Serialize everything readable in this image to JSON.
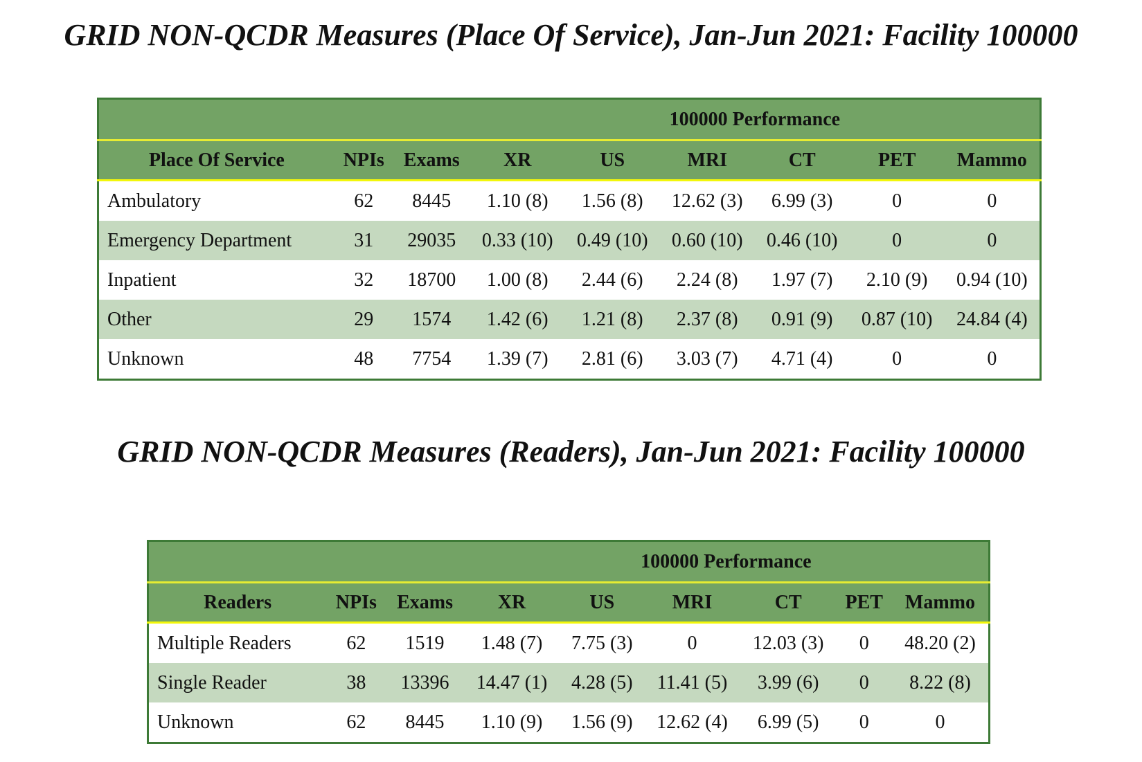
{
  "section1": {
    "title": "GRID NON-QCDR Measures (Place Of Service), Jan-Jun 2021: Facility 100000",
    "performance_header": "100000 Performance",
    "columns": [
      "Place Of Service",
      "NPIs",
      "Exams",
      "XR",
      "US",
      "MRI",
      "CT",
      "PET",
      "Mammo"
    ],
    "rows": [
      [
        "Ambulatory",
        "62",
        "8445",
        "1.10 (8)",
        "1.56 (8)",
        "12.62 (3)",
        "6.99 (3)",
        "0",
        "0"
      ],
      [
        "Emergency Department",
        "31",
        "29035",
        "0.33 (10)",
        "0.49 (10)",
        "0.60 (10)",
        "0.46 (10)",
        "0",
        "0"
      ],
      [
        "Inpatient",
        "32",
        "18700",
        "1.00 (8)",
        "2.44 (6)",
        "2.24 (8)",
        "1.97 (7)",
        "2.10 (9)",
        "0.94 (10)"
      ],
      [
        "Other",
        "29",
        "1574",
        "1.42 (6)",
        "1.21 (8)",
        "2.37 (8)",
        "0.91 (9)",
        "0.87 (10)",
        "24.84 (4)"
      ],
      [
        "Unknown",
        "48",
        "7754",
        "1.39 (7)",
        "2.81 (6)",
        "3.03 (7)",
        "4.71 (4)",
        "0",
        "0"
      ]
    ]
  },
  "section2": {
    "title": "GRID NON-QCDR Measures (Readers), Jan-Jun 2021: Facility 100000",
    "performance_header": "100000 Performance",
    "columns": [
      "Readers",
      "NPIs",
      "Exams",
      "XR",
      "US",
      "MRI",
      "CT",
      "PET",
      "Mammo"
    ],
    "rows": [
      [
        "Multiple Readers",
        "62",
        "1519",
        "1.48 (7)",
        "7.75 (3)",
        "0",
        "12.03 (3)",
        "0",
        "48.20 (2)"
      ],
      [
        "Single Reader",
        "38",
        "13396",
        "14.47 (1)",
        "4.28 (5)",
        "11.41 (5)",
        "3.99 (6)",
        "0",
        "8.22 (8)"
      ],
      [
        "Unknown",
        "62",
        "8445",
        "1.10 (9)",
        "1.56 (9)",
        "12.62 (4)",
        "6.99 (5)",
        "0",
        "0"
      ]
    ]
  },
  "colors": {
    "header_green": "#73a365",
    "border_green": "#3d7a36",
    "stripe_green": "#c5d9bf",
    "header_rule_yellow": "#f3f70a"
  }
}
